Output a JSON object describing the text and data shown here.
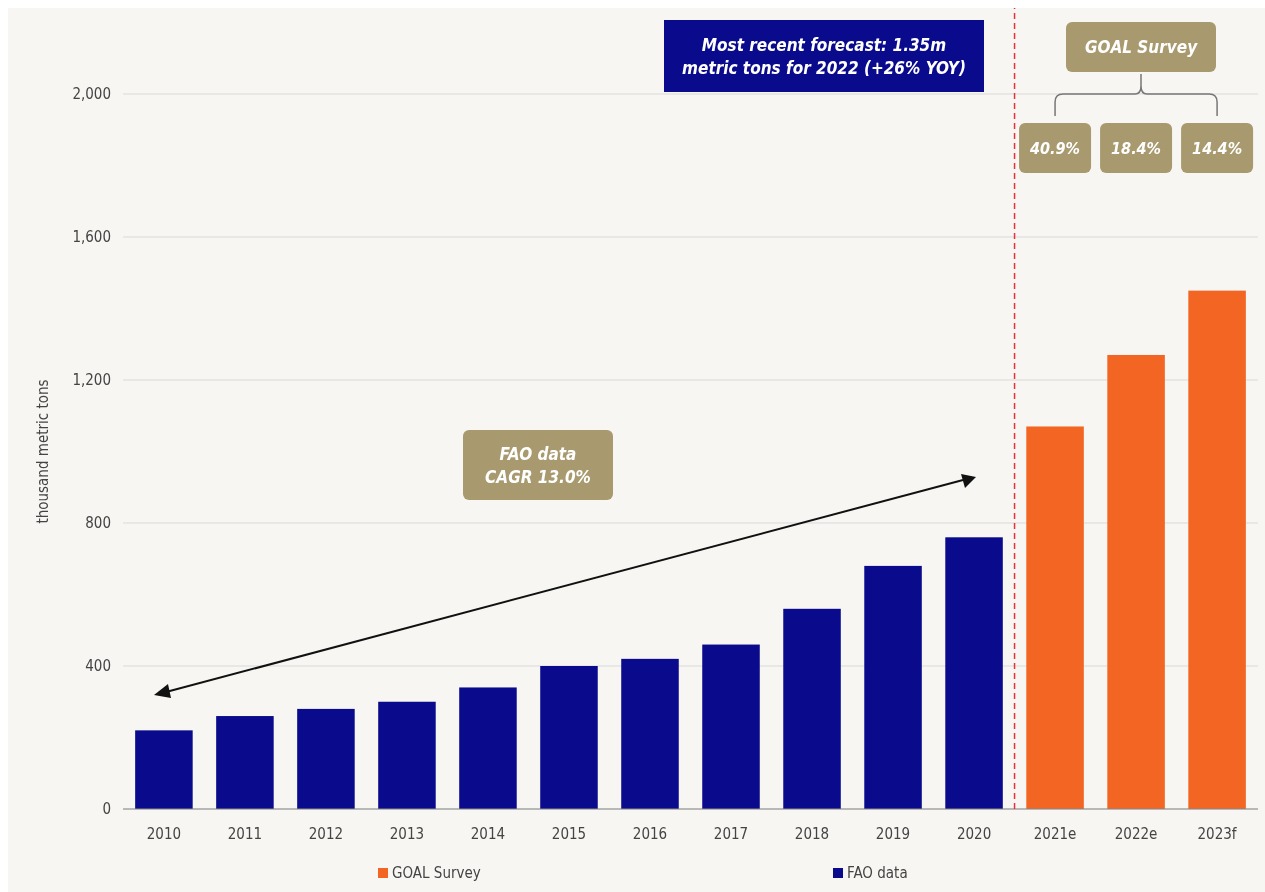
{
  "chart_data": {
    "type": "bar",
    "ylabel": "thousand metric tons",
    "categories": [
      "2010",
      "2011",
      "2012",
      "2013",
      "2014",
      "2015",
      "2016",
      "2017",
      "2018",
      "2019",
      "2020",
      "2021e",
      "2022e",
      "2023f"
    ],
    "series": [
      {
        "name": "GOAL Survey",
        "color": "#f26522",
        "values": [
          null,
          null,
          null,
          null,
          null,
          null,
          null,
          null,
          null,
          null,
          null,
          1070,
          1270,
          1450
        ]
      },
      {
        "name": "FAO data",
        "color": "#0a0a8c",
        "values": [
          220,
          260,
          280,
          300,
          340,
          400,
          420,
          460,
          560,
          680,
          760,
          null,
          null,
          null
        ]
      }
    ],
    "ylim": [
      0,
      2000
    ],
    "yticks": [
      0,
      400,
      800,
      {
        "value": 1200,
        "label": "1,200"
      },
      {
        "value": 1600,
        "label": "1,600"
      },
      {
        "value": 2000,
        "label": "2,000"
      }
    ],
    "grid": "y",
    "legend": "bottom",
    "ref_lines": [
      {
        "axis": "x",
        "value": "2021e",
        "color": "#e8333b",
        "line_style": "dashed"
      }
    ],
    "annotations": [
      "Most recent forecast: 1.35m metric tons for 2022 (+26% YOY)",
      "GOAL Survey",
      "FAO data CAGR 13.0%",
      "40.9%",
      "18.4%",
      "14.4%"
    ]
  }
}
